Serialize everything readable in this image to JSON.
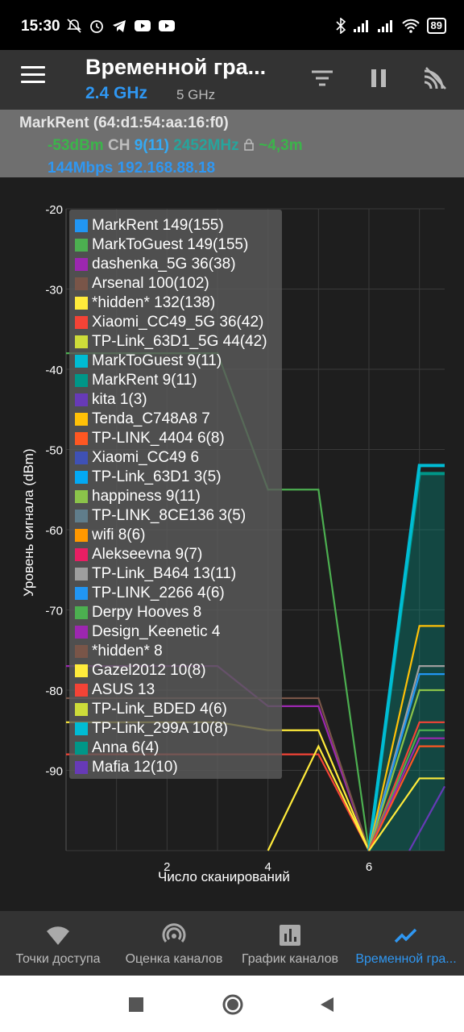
{
  "status_bar": {
    "time": "15:30",
    "battery": "89",
    "icons": [
      "mute-icon",
      "alarm-icon",
      "telegram-icon",
      "youtube-icon",
      "youtube-icon",
      "bluetooth-icon",
      "signal-icon",
      "signal-icon",
      "wifi-icon",
      "battery-icon"
    ]
  },
  "app_bar": {
    "title": "Временной гра...",
    "band_24": "2.4 GHz",
    "band_5": "5 GHz",
    "actions": [
      "filter-icon",
      "pause-icon",
      "wifi-scan-icon"
    ]
  },
  "connection": {
    "name": "MarkRent (64:d1:54:aa:16:f0)",
    "signal": "-53dBm",
    "ch_label": "CH",
    "channel": "9(11)",
    "frequency": "2452MHz",
    "distance": "~4,3m",
    "speed_ip": "144Mbps 192.168.88.18"
  },
  "chart_data": {
    "type": "line",
    "ylabel": "Уровень сигнала (dBm)",
    "xlabel": "Число сканирований",
    "ylim": [
      -100,
      -20
    ],
    "y_ticks": [
      "-20",
      "-30",
      "-40",
      "-50",
      "-60",
      "-70",
      "-80",
      "-90"
    ],
    "x_ticks": [
      "2",
      "4",
      "6"
    ],
    "series": [
      {
        "name": "MarkRent 149(155)",
        "color": "#2196f3"
      },
      {
        "name": "MarkToGuest 149(155)",
        "color": "#4caf50"
      },
      {
        "name": "dashenka_5G 36(38)",
        "color": "#9c27b0"
      },
      {
        "name": "Arsenal 100(102)",
        "color": "#795548"
      },
      {
        "name": "*hidden* 132(138)",
        "color": "#ffeb3b"
      },
      {
        "name": "Xiaomi_CC49_5G 36(42)",
        "color": "#f44336"
      },
      {
        "name": "TP-Link_63D1_5G 44(42)",
        "color": "#cddc39"
      },
      {
        "name": "MarkToGuest 9(11)",
        "color": "#00bcd4"
      },
      {
        "name": "MarkRent 9(11)",
        "color": "#009688"
      },
      {
        "name": "kita 1(3)",
        "color": "#673ab7"
      },
      {
        "name": "Tenda_C748A8 7",
        "color": "#ffc107"
      },
      {
        "name": "TP-LINK_4404 6(8)",
        "color": "#ff5722"
      },
      {
        "name": "Xiaomi_CC49 6",
        "color": "#3f51b5"
      },
      {
        "name": "TP-Link_63D1 3(5)",
        "color": "#03a9f4"
      },
      {
        "name": "happiness 9(11)",
        "color": "#8bc34a"
      },
      {
        "name": "TP-LINK_8CE136 3(5)",
        "color": "#607d8b"
      },
      {
        "name": "wifi 8(6)",
        "color": "#ff9800"
      },
      {
        "name": "Alekseevna 9(7)",
        "color": "#e91e63"
      },
      {
        "name": "TP-Link_B464 13(11)",
        "color": "#9e9e9e"
      },
      {
        "name": "TP-LINK_2266 4(6)",
        "color": "#2196f3"
      },
      {
        "name": "Derpy Hooves 8",
        "color": "#4caf50"
      },
      {
        "name": "Design_Keenetic 4",
        "color": "#9c27b0"
      },
      {
        "name": "*hidden* 8",
        "color": "#795548"
      },
      {
        "name": "Gazel2012 10(8)",
        "color": "#ffeb3b"
      },
      {
        "name": "ASUS 13",
        "color": "#f44336"
      },
      {
        "name": "TP-Link_BDED 4(6)",
        "color": "#cddc39"
      },
      {
        "name": "TP-Link_299A 10(8)",
        "color": "#00bcd4"
      },
      {
        "name": "Anna 6(4)",
        "color": "#009688"
      },
      {
        "name": "Mafia 12(10)",
        "color": "#673ab7"
      }
    ],
    "lines": [
      {
        "series": "MarkToGuest 149(155)",
        "points": [
          [
            0,
            -38
          ],
          [
            3,
            -38
          ],
          [
            4,
            -55
          ],
          [
            5,
            -55
          ],
          [
            6,
            -100
          ]
        ]
      },
      {
        "series": "dashenka_5G 36(38)",
        "points": [
          [
            0,
            -77
          ],
          [
            3,
            -77
          ],
          [
            4,
            -82
          ],
          [
            5,
            -82
          ],
          [
            6,
            -100
          ]
        ]
      },
      {
        "series": "Arsenal 100(102)",
        "points": [
          [
            0,
            -81
          ],
          [
            5,
            -81
          ],
          [
            6,
            -100
          ]
        ]
      },
      {
        "series": "*hidden* 132(138)",
        "points": [
          [
            0,
            -84
          ],
          [
            3,
            -84
          ],
          [
            4,
            -85
          ],
          [
            5,
            -85
          ],
          [
            6,
            -100
          ]
        ]
      },
      {
        "series": "Xiaomi_CC49_5G 36(42)",
        "points": [
          [
            0,
            -88
          ],
          [
            5,
            -88
          ],
          [
            6,
            -100
          ]
        ]
      },
      {
        "series": "Gazel2012 10(8)",
        "points": [
          [
            4,
            -100
          ],
          [
            5,
            -87
          ],
          [
            6,
            -100
          ]
        ]
      },
      {
        "series": "MarkRent 9(11)",
        "points": [
          [
            6,
            -100
          ],
          [
            7,
            -53
          ],
          [
            7.5,
            -53
          ]
        ]
      },
      {
        "series": "MarkToGuest 9(11)",
        "points": [
          [
            6,
            -100
          ],
          [
            7,
            -52
          ],
          [
            7.5,
            -52
          ]
        ]
      },
      {
        "series": "Tenda_C748A8 7",
        "points": [
          [
            6,
            -100
          ],
          [
            7,
            -72
          ],
          [
            7.5,
            -72
          ]
        ]
      },
      {
        "series": "TP-Link_B464 13(11)",
        "points": [
          [
            6,
            -100
          ],
          [
            7,
            -77
          ],
          [
            7.5,
            -77
          ]
        ]
      },
      {
        "series": "TP-LINK_2266 4(6)",
        "points": [
          [
            6,
            -100
          ],
          [
            7,
            -78
          ],
          [
            7.5,
            -78
          ]
        ]
      },
      {
        "series": "happiness 9(11)",
        "points": [
          [
            6,
            -100
          ],
          [
            7,
            -80
          ],
          [
            7.5,
            -80
          ]
        ]
      },
      {
        "series": "ASUS 13",
        "points": [
          [
            6,
            -100
          ],
          [
            7,
            -84
          ],
          [
            7.5,
            -84
          ]
        ]
      },
      {
        "series": "Derpy Hooves 8",
        "points": [
          [
            6,
            -100
          ],
          [
            7,
            -85
          ],
          [
            7.5,
            -85
          ]
        ]
      },
      {
        "series": "Design_Keenetic 4",
        "points": [
          [
            6,
            -100
          ],
          [
            7,
            -86
          ],
          [
            7.5,
            -86
          ]
        ]
      },
      {
        "series": "TP-LINK_4404 6(8)",
        "points": [
          [
            6,
            -100
          ],
          [
            7,
            -87
          ],
          [
            7.5,
            -87
          ]
        ]
      },
      {
        "series": "Gazel2012 10(8)",
        "points": [
          [
            6,
            -100
          ],
          [
            7,
            -91
          ],
          [
            7.5,
            -91
          ]
        ]
      },
      {
        "series": "Mafia 12(10)",
        "points": [
          [
            6.8,
            -100
          ],
          [
            7.5,
            -92
          ]
        ]
      }
    ],
    "grid": true,
    "legend": "top-left overlay"
  },
  "bottom_nav": {
    "items": [
      {
        "label": "Точки доступа",
        "icon": "wifi-icon",
        "active": false
      },
      {
        "label": "Оценка каналов",
        "icon": "signal-rating-icon",
        "active": false
      },
      {
        "label": "График каналов",
        "icon": "bar-chart-icon",
        "active": false
      },
      {
        "label": "Временной гра...",
        "icon": "time-graph-icon",
        "active": true
      }
    ]
  },
  "system_nav": {
    "buttons": [
      "recents-icon",
      "home-icon",
      "back-icon"
    ]
  }
}
